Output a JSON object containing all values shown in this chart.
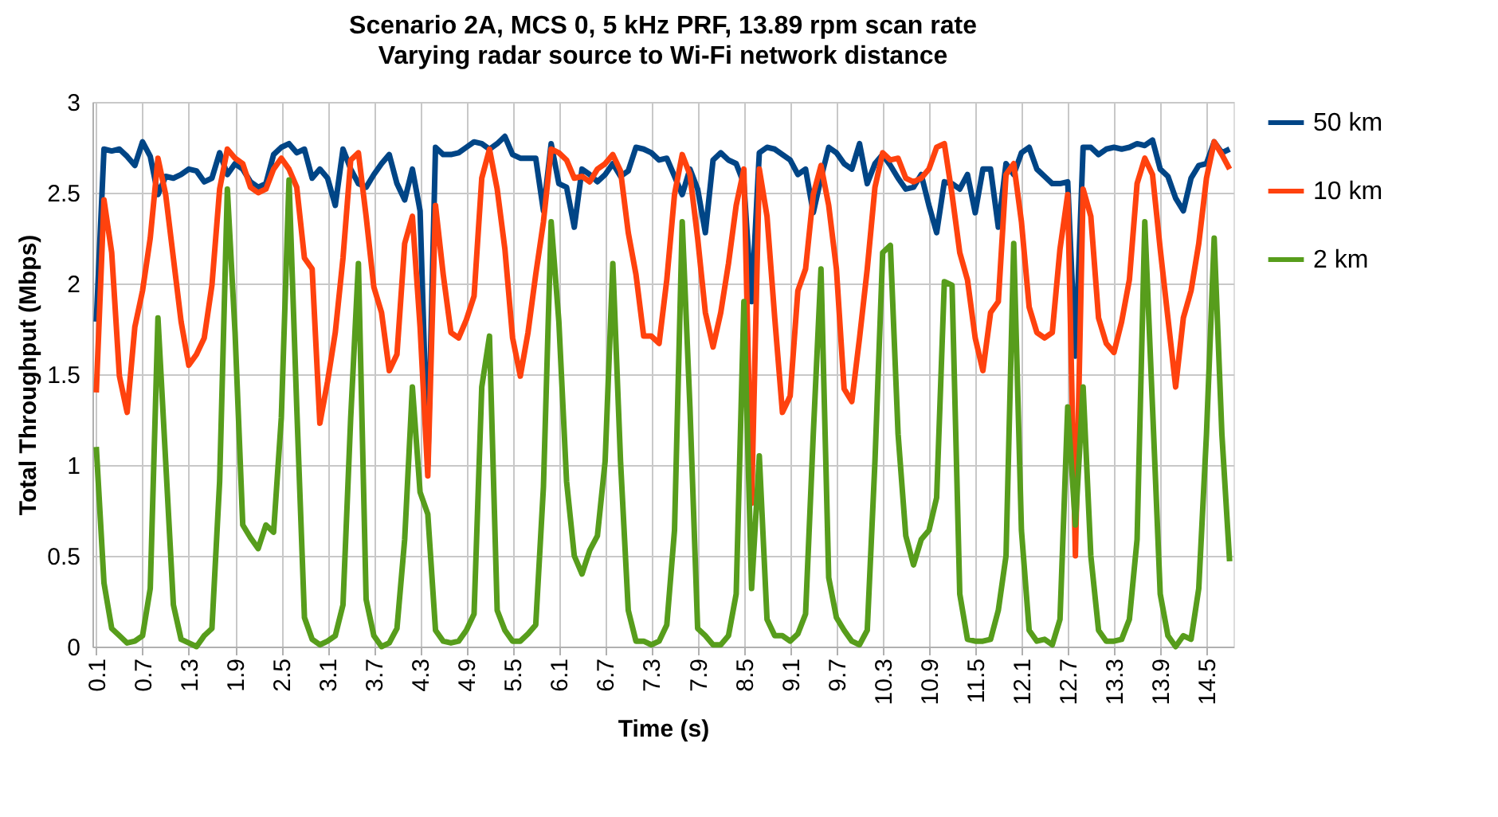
{
  "chart_data": {
    "type": "line",
    "title": "Scenario 2A, MCS 0, 5 kHz PRF, 13.89 rpm scan rate",
    "subtitle": "Varying radar source to Wi-Fi network distance",
    "xlabel": "Time (s)",
    "ylabel": "Total Throughput (Mbps)",
    "categories": [
      "0.1",
      null,
      null,
      null,
      null,
      null,
      "0.7",
      null,
      null,
      null,
      null,
      null,
      "1.3",
      null,
      null,
      null,
      null,
      null,
      "1.9",
      null,
      null,
      null,
      null,
      null,
      "2.5",
      null,
      null,
      null,
      null,
      null,
      "3.1",
      null,
      null,
      null,
      null,
      null,
      "3.7",
      null,
      null,
      null,
      null,
      null,
      "4.3",
      null,
      null,
      null,
      null,
      null,
      "4.9",
      null,
      null,
      null,
      null,
      null,
      "5.5",
      null,
      null,
      null,
      null,
      null,
      "6.1",
      null,
      null,
      null,
      null,
      null,
      "6.7",
      null,
      null,
      null,
      null,
      null,
      "7.3",
      null,
      null,
      null,
      null,
      null,
      "7.9",
      null,
      null,
      null,
      null,
      null,
      "8.5",
      null,
      null,
      null,
      null,
      null,
      "9.1",
      null,
      null,
      null,
      null,
      null,
      "9.7",
      null,
      null,
      null,
      null,
      null,
      "10.3",
      null,
      null,
      null,
      null,
      null,
      "10.9",
      null,
      null,
      null,
      null,
      null,
      "11.5",
      null,
      null,
      null,
      null,
      null,
      "12.1",
      null,
      null,
      null,
      null,
      null,
      "12.7",
      null,
      null,
      null,
      null,
      null,
      "13.3",
      null,
      null,
      null,
      null,
      null,
      "13.9",
      null,
      null,
      null,
      null,
      null,
      "14.5",
      null,
      null,
      null
    ],
    "series": [
      {
        "name": "50 km",
        "color": "#004586",
        "values": [
          1.79,
          2.74,
          2.73,
          2.74,
          2.7,
          2.65,
          2.78,
          2.7,
          2.49,
          2.59,
          2.58,
          2.6,
          2.63,
          2.62,
          2.56,
          2.58,
          2.72,
          2.6,
          2.66,
          2.63,
          2.56,
          2.53,
          2.55,
          2.71,
          2.75,
          2.77,
          2.72,
          2.74,
          2.58,
          2.63,
          2.58,
          2.43,
          2.74,
          2.63,
          2.55,
          2.53,
          2.6,
          2.66,
          2.71,
          2.55,
          2.46,
          2.63,
          2.4,
          1.0,
          2.75,
          2.71,
          2.71,
          2.72,
          2.75,
          2.78,
          2.77,
          2.74,
          2.77,
          2.81,
          2.71,
          2.69,
          2.69,
          2.69,
          2.4,
          2.77,
          2.55,
          2.53,
          2.31,
          2.63,
          2.6,
          2.56,
          2.6,
          2.66,
          2.59,
          2.62,
          2.75,
          2.74,
          2.72,
          2.68,
          2.69,
          2.59,
          2.49,
          2.63,
          2.52,
          2.28,
          2.68,
          2.72,
          2.68,
          2.66,
          2.55,
          1.9,
          2.72,
          2.75,
          2.74,
          2.71,
          2.68,
          2.6,
          2.63,
          2.39,
          2.58,
          2.75,
          2.72,
          2.66,
          2.63,
          2.77,
          2.55,
          2.66,
          2.71,
          2.65,
          2.58,
          2.52,
          2.53,
          2.6,
          2.43,
          2.28,
          2.56,
          2.55,
          2.52,
          2.6,
          2.39,
          2.63,
          2.63,
          2.31,
          2.66,
          2.6,
          2.72,
          2.75,
          2.63,
          2.59,
          2.55,
          2.55,
          2.56,
          1.6,
          2.75,
          2.75,
          2.71,
          2.74,
          2.75,
          2.74,
          2.75,
          2.77,
          2.76,
          2.79,
          2.63,
          2.59,
          2.47,
          2.4,
          2.58,
          2.65,
          2.66,
          2.78,
          2.72,
          2.74
        ]
      },
      {
        "name": "10 km",
        "color": "#ff420e",
        "values": [
          1.4,
          2.46,
          2.17,
          1.49,
          1.29,
          1.76,
          1.96,
          2.25,
          2.69,
          2.49,
          2.14,
          1.79,
          1.55,
          1.61,
          1.7,
          1.99,
          2.52,
          2.74,
          2.69,
          2.66,
          2.53,
          2.5,
          2.52,
          2.63,
          2.69,
          2.63,
          2.53,
          2.14,
          2.08,
          1.23,
          1.46,
          1.73,
          2.14,
          2.68,
          2.72,
          2.37,
          1.98,
          1.84,
          1.52,
          1.61,
          2.22,
          2.37,
          1.76,
          0.94,
          2.43,
          2.05,
          1.73,
          1.7,
          1.8,
          1.93,
          2.58,
          2.74,
          2.52,
          2.19,
          1.7,
          1.49,
          1.73,
          2.05,
          2.34,
          2.74,
          2.72,
          2.68,
          2.58,
          2.59,
          2.56,
          2.63,
          2.66,
          2.71,
          2.62,
          2.28,
          2.05,
          1.71,
          1.71,
          1.67,
          2.02,
          2.49,
          2.71,
          2.6,
          2.25,
          1.84,
          1.65,
          1.84,
          2.11,
          2.43,
          2.63,
          0.79,
          2.63,
          2.37,
          1.81,
          1.29,
          1.38,
          1.96,
          2.08,
          2.49,
          2.65,
          2.43,
          2.08,
          1.42,
          1.35,
          1.7,
          2.08,
          2.53,
          2.72,
          2.68,
          2.69,
          2.58,
          2.56,
          2.58,
          2.63,
          2.75,
          2.77,
          2.49,
          2.17,
          2.02,
          1.7,
          1.52,
          1.84,
          1.9,
          2.6,
          2.66,
          2.34,
          1.87,
          1.73,
          1.7,
          1.73,
          2.19,
          2.49,
          0.5,
          2.52,
          2.37,
          1.81,
          1.67,
          1.62,
          1.79,
          2.02,
          2.55,
          2.69,
          2.6,
          2.19,
          1.81,
          1.43,
          1.81,
          1.96,
          2.22,
          2.58,
          2.78,
          2.71,
          2.63
        ]
      },
      {
        "name": "2 km",
        "color": "#579d1c",
        "values": [
          1.1,
          0.35,
          0.1,
          0.06,
          0.02,
          0.03,
          0.06,
          0.32,
          1.81,
          1.02,
          0.23,
          0.04,
          0.02,
          0.0,
          0.06,
          0.1,
          0.91,
          2.52,
          1.73,
          0.67,
          0.6,
          0.54,
          0.67,
          0.63,
          1.26,
          2.57,
          1.32,
          0.16,
          0.04,
          0.01,
          0.03,
          0.06,
          0.23,
          1.26,
          2.11,
          0.26,
          0.06,
          0.0,
          0.02,
          0.1,
          0.59,
          1.43,
          0.85,
          0.73,
          0.09,
          0.03,
          0.02,
          0.03,
          0.09,
          0.18,
          1.43,
          1.71,
          0.2,
          0.09,
          0.03,
          0.03,
          0.07,
          0.12,
          0.88,
          2.34,
          1.79,
          0.91,
          0.5,
          0.4,
          0.53,
          0.61,
          1.02,
          2.11,
          1.02,
          0.2,
          0.03,
          0.03,
          0.01,
          0.03,
          0.12,
          0.64,
          2.34,
          1.32,
          0.1,
          0.06,
          0.01,
          0.01,
          0.06,
          0.29,
          1.9,
          0.32,
          1.05,
          0.15,
          0.06,
          0.06,
          0.03,
          0.07,
          0.18,
          1.17,
          2.08,
          0.38,
          0.16,
          0.09,
          0.03,
          0.01,
          0.09,
          1.02,
          2.17,
          2.21,
          1.17,
          0.61,
          0.45,
          0.59,
          0.64,
          0.82,
          2.01,
          1.99,
          0.29,
          0.04,
          0.03,
          0.03,
          0.04,
          0.2,
          0.5,
          2.22,
          0.64,
          0.09,
          0.03,
          0.04,
          0.01,
          0.15,
          1.32,
          0.67,
          1.43,
          0.5,
          0.09,
          0.03,
          0.03,
          0.04,
          0.15,
          0.59,
          2.34,
          1.32,
          0.29,
          0.06,
          0.0,
          0.06,
          0.04,
          0.32,
          1.17,
          2.25,
          1.17,
          0.47
        ]
      }
    ],
    "ylim": [
      0,
      3
    ],
    "yticks": [
      0,
      0.5,
      1,
      1.5,
      2,
      2.5,
      3
    ],
    "grid": true,
    "legend": "right",
    "line_style": "solid",
    "marker": "none"
  }
}
